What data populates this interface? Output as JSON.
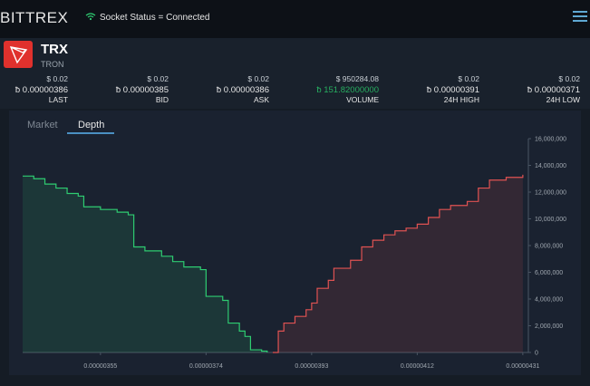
{
  "header": {
    "brand": "BITTREX",
    "socket_status": "Socket Status = Connected",
    "menu_icon": "hamburger-icon"
  },
  "market": {
    "symbol": "TRX",
    "name": "TRON",
    "stats": [
      {
        "key": "last",
        "usd": "$ 0.02",
        "btc": "ƀ 0.00000386",
        "label": "LAST"
      },
      {
        "key": "bid",
        "usd": "$ 0.02",
        "btc": "ƀ 0.00000385",
        "label": "BID"
      },
      {
        "key": "ask",
        "usd": "$ 0.02",
        "btc": "ƀ 0.00000386",
        "label": "ASK"
      },
      {
        "key": "volume",
        "usd": "$ 950284.08",
        "btc": "ƀ 151.82000000",
        "label": "VOLUME"
      },
      {
        "key": "high",
        "usd": "$ 0.02",
        "btc": "ƀ 0.00000391",
        "label": "24H HIGH"
      },
      {
        "key": "low",
        "usd": "$ 0.02",
        "btc": "ƀ 0.00000371",
        "label": "24H LOW"
      }
    ]
  },
  "tabs": {
    "market": "Market",
    "depth": "Depth",
    "active": "depth"
  },
  "colors": {
    "bid": "#2ecc71",
    "ask": "#e05252",
    "accent": "#4a90c2",
    "volume_btc": "#27ae60"
  },
  "chart_data": {
    "type": "area",
    "xlim": [
      3.41e-06,
      4.32e-06
    ],
    "ylim": [
      0,
      16000000
    ],
    "x_ticks": [
      "0.00000355",
      "0.00000374",
      "0.00000393",
      "0.00000412",
      "0.00000431"
    ],
    "x_tick_values": [
      3.55e-06,
      3.74e-06,
      3.93e-06,
      4.12e-06,
      4.31e-06
    ],
    "y_ticks": [
      "0",
      "2,000,000",
      "4,000,000",
      "6,000,000",
      "8,000,000",
      "10,000,000",
      "12,000,000",
      "14,000,000",
      "16,000,000"
    ],
    "y_tick_values": [
      0,
      2000000,
      4000000,
      6000000,
      8000000,
      10000000,
      12000000,
      14000000,
      16000000
    ],
    "series": [
      {
        "side": "bid",
        "points": [
          [
            3.41e-06,
            13200000
          ],
          [
            3.43e-06,
            13000000
          ],
          [
            3.45e-06,
            12600000
          ],
          [
            3.47e-06,
            12300000
          ],
          [
            3.49e-06,
            11900000
          ],
          [
            3.51e-06,
            11700000
          ],
          [
            3.52e-06,
            10900000
          ],
          [
            3.55e-06,
            10700000
          ],
          [
            3.58e-06,
            10500000
          ],
          [
            3.6e-06,
            10300000
          ],
          [
            3.61e-06,
            7900000
          ],
          [
            3.63e-06,
            7600000
          ],
          [
            3.66e-06,
            7200000
          ],
          [
            3.68e-06,
            6800000
          ],
          [
            3.7e-06,
            6400000
          ],
          [
            3.73e-06,
            6200000
          ],
          [
            3.74e-06,
            4200000
          ],
          [
            3.77e-06,
            3900000
          ],
          [
            3.78e-06,
            2200000
          ],
          [
            3.8e-06,
            1600000
          ],
          [
            3.81e-06,
            1200000
          ],
          [
            3.82e-06,
            200000
          ],
          [
            3.84e-06,
            100000
          ],
          [
            3.85e-06,
            0
          ]
        ]
      },
      {
        "side": "ask",
        "points": [
          [
            3.86e-06,
            0
          ],
          [
            3.87e-06,
            1600000
          ],
          [
            3.88e-06,
            2200000
          ],
          [
            3.9e-06,
            2700000
          ],
          [
            3.92e-06,
            3200000
          ],
          [
            3.93e-06,
            3700000
          ],
          [
            3.94e-06,
            4800000
          ],
          [
            3.96e-06,
            5400000
          ],
          [
            3.97e-06,
            6300000
          ],
          [
            4e-06,
            6900000
          ],
          [
            4.02e-06,
            7900000
          ],
          [
            4.04e-06,
            8400000
          ],
          [
            4.06e-06,
            8800000
          ],
          [
            4.08e-06,
            9100000
          ],
          [
            4.1e-06,
            9300000
          ],
          [
            4.12e-06,
            9600000
          ],
          [
            4.14e-06,
            10100000
          ],
          [
            4.16e-06,
            10700000
          ],
          [
            4.18e-06,
            11000000
          ],
          [
            4.21e-06,
            11300000
          ],
          [
            4.23e-06,
            12300000
          ],
          [
            4.25e-06,
            12900000
          ],
          [
            4.28e-06,
            13100000
          ],
          [
            4.31e-06,
            13300000
          ]
        ]
      }
    ]
  }
}
